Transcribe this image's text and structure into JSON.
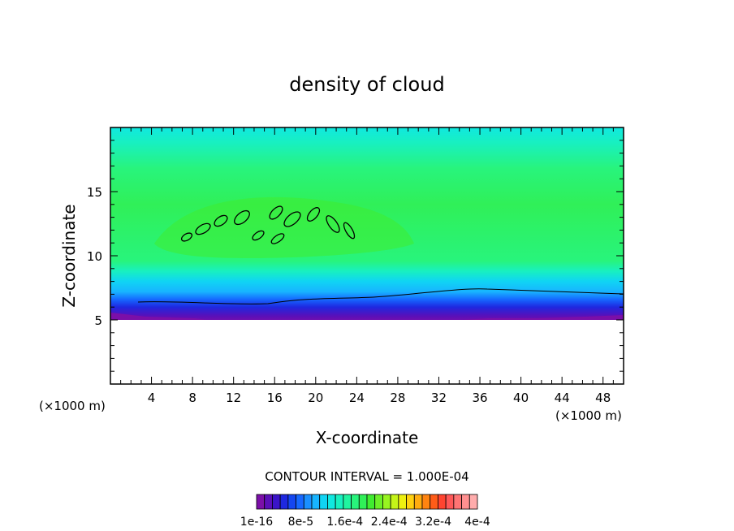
{
  "chart_data": {
    "type": "heatmap",
    "title": "density of cloud",
    "xlabel": "X-coordinate",
    "ylabel": "Z-coordinate",
    "xlim": [
      0,
      50
    ],
    "ylim": [
      0,
      20
    ],
    "x_ticks": [
      4,
      8,
      12,
      16,
      20,
      24,
      28,
      32,
      36,
      40,
      44,
      48
    ],
    "y_ticks": [
      5,
      10,
      15
    ],
    "x_unit_left": "(×1000 m)",
    "x_unit_right": "(×1000 m)",
    "contour_interval_text": "CONTOUR INTERVAL = 1.000E-04",
    "colorbar": {
      "labels": [
        "1e-16",
        "8e-5",
        "1.6e-4",
        "2.4e-4",
        "3.2e-4",
        "4e-4"
      ],
      "colors": [
        "#7b0fa8",
        "#5a0fb8",
        "#3a14c8",
        "#1e28e0",
        "#1446f0",
        "#1668ff",
        "#1a90ff",
        "#18b4ff",
        "#10d4f4",
        "#10e8e0",
        "#18f0c0",
        "#20f4a0",
        "#28f47c",
        "#30f058",
        "#40ec30",
        "#6cf028",
        "#98f420",
        "#c4f418",
        "#eef010",
        "#ffd010",
        "#ffac10",
        "#ff8410",
        "#ff5c18",
        "#ff4430",
        "#ff5858",
        "#ff7474",
        "#ff9090",
        "#ffacac"
      ]
    },
    "regions": {
      "empty_below_z": 4.8,
      "cloud_base_z": 5.5,
      "dense_core_z": [
        11,
        14
      ],
      "top_band_z": [
        18,
        19.5
      ]
    }
  }
}
